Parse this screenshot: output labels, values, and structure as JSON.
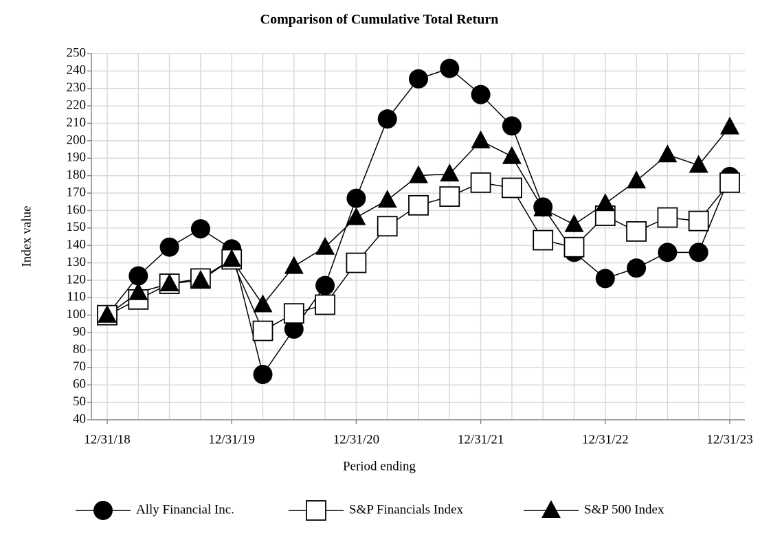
{
  "chart_data": {
    "type": "line",
    "title": "Comparison of Cumulative Total Return",
    "x_label": "Period ending",
    "y_label": "Index value",
    "categories": [
      "12/31/18",
      null,
      null,
      null,
      "12/31/19",
      null,
      null,
      null,
      "12/31/20",
      null,
      null,
      null,
      "12/31/21",
      null,
      null,
      null,
      "12/31/22",
      null,
      null,
      null,
      "12/31/23"
    ],
    "series": [
      {
        "name": "Ally Financial Inc.",
        "color": "#000000",
        "marker": "circle",
        "values": [
          100,
          122.5,
          139,
          149.5,
          138,
          66,
          92,
          117,
          167,
          212.5,
          235.5,
          241.5,
          226.5,
          208.5,
          162,
          136,
          121,
          127,
          136,
          136,
          179.5
        ]
      },
      {
        "name": "S&P Financials Index",
        "color": "#000000",
        "marker": "square",
        "values": [
          100,
          109,
          118,
          121,
          132,
          91,
          101,
          106,
          130,
          151,
          163,
          168,
          176,
          173,
          143,
          139,
          157,
          148,
          156,
          154,
          176
        ]
      },
      {
        "name": "S&P 500 Index",
        "color": "#000000",
        "marker": "triangle",
        "values": [
          100,
          113,
          118,
          120,
          132,
          106,
          128,
          139,
          156,
          166,
          180,
          181,
          200,
          191,
          161,
          152,
          164,
          177,
          192,
          186,
          208
        ]
      }
    ],
    "ylim": [
      40,
      250
    ],
    "yticks": [
      40,
      50,
      60,
      70,
      80,
      90,
      100,
      110,
      120,
      130,
      140,
      150,
      160,
      170,
      180,
      190,
      200,
      210,
      220,
      230,
      240,
      250
    ],
    "grid": true,
    "legend": "bottom"
  }
}
